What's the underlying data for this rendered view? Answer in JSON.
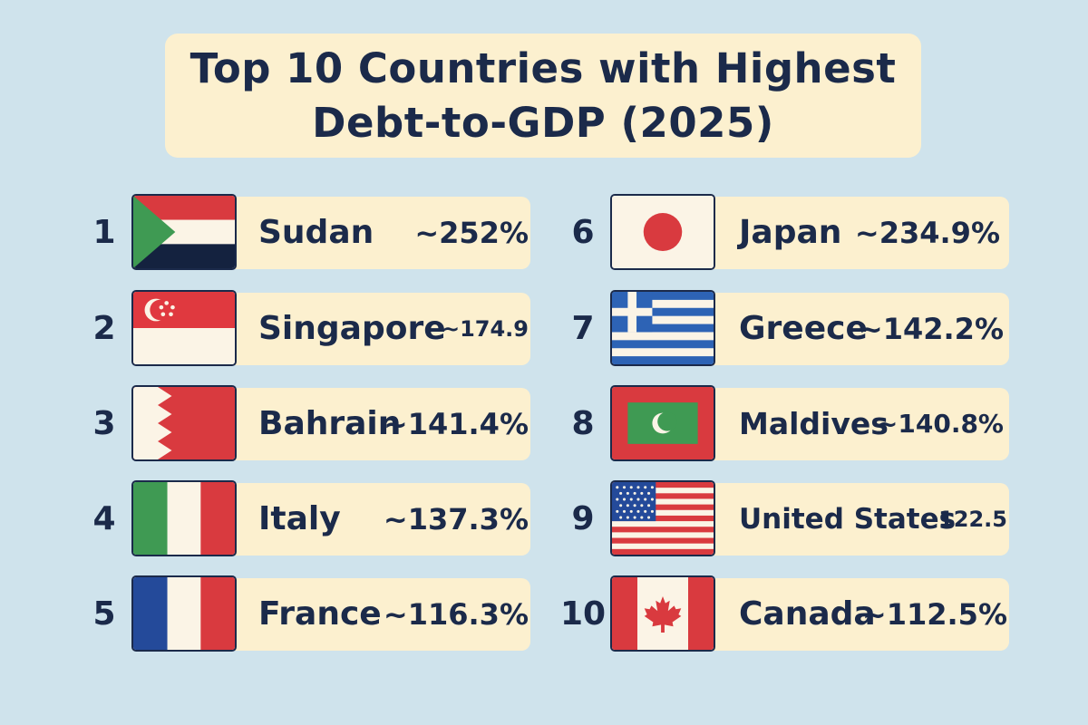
{
  "title": {
    "line1": "Top 10 Countries with Highest",
    "line2": "Debt-to-GDP (2025)"
  },
  "colors": {
    "background": "#cfe3ec",
    "pill": "#fcf0cf",
    "text": "#1b2a4a"
  },
  "countries": [
    {
      "rank": "1",
      "name": "Sudan",
      "value": "~252%",
      "flag": "sudan-flag-icon"
    },
    {
      "rank": "2",
      "name": "Singapore",
      "value": "~174.9",
      "flag": "singapore-flag-icon"
    },
    {
      "rank": "3",
      "name": "Bahrain",
      "value": "~141.4%",
      "flag": "bahrain-flag-icon"
    },
    {
      "rank": "4",
      "name": "Italy",
      "value": "~137.3%",
      "flag": "italy-flag-icon"
    },
    {
      "rank": "5",
      "name": "France",
      "value": "~116.3%",
      "flag": "france-flag-icon"
    },
    {
      "rank": "6",
      "name": "Japan",
      "value": "~234.9%",
      "flag": "japan-flag-icon"
    },
    {
      "rank": "7",
      "name": "Greece",
      "value": "~142.2%",
      "flag": "greece-flag-icon"
    },
    {
      "rank": "8",
      "name": "Maldives",
      "value": "~140.8%",
      "flag": "maldives-flag-icon"
    },
    {
      "rank": "9",
      "name": "United States",
      "value": "122.5",
      "flag": "usa-flag-icon"
    },
    {
      "rank": "10",
      "name": "Canada",
      "value": "~112.5%",
      "flag": "canada-flag-icon"
    }
  ]
}
